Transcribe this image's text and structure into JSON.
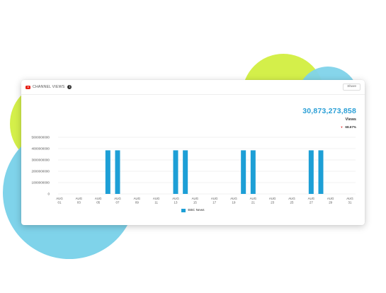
{
  "widget": {
    "title": "CHANNEL VIEWS",
    "info_symbol": "i",
    "share_label": "Share",
    "total_views": "30,873,273,858",
    "views_label": "Views",
    "change_symbol": "▼",
    "change_value": "68.67%"
  },
  "colors": {
    "accent": "#2a9fd6",
    "bar": "#1d9fd6",
    "negative": "#e03030",
    "youtube": "#e62117"
  },
  "chart_data": {
    "type": "bar",
    "y_ticks": [
      "5000000000",
      "4000000000",
      "3000000000",
      "2000000000",
      "1000000000",
      "0"
    ],
    "ylim": [
      0,
      5000000000
    ],
    "x_ticks": [
      [
        "AUG",
        "01"
      ],
      [
        "AUG",
        "03"
      ],
      [
        "AUG",
        "05"
      ],
      [
        "AUG",
        "07"
      ],
      [
        "AUG",
        "09"
      ],
      [
        "AUG",
        "11"
      ],
      [
        "AUG",
        "13"
      ],
      [
        "AUG",
        "15"
      ],
      [
        "AUG",
        "17"
      ],
      [
        "AUG",
        "19"
      ],
      [
        "AUG",
        "21"
      ],
      [
        "AUG",
        "23"
      ],
      [
        "AUG",
        "25"
      ],
      [
        "AUG",
        "27"
      ],
      [
        "AUG",
        "29"
      ],
      [
        "AUG",
        "31"
      ]
    ],
    "x_start_day": 1,
    "x_end_day": 31,
    "series": [
      {
        "name": "BBC News",
        "points": [
          {
            "day": 6,
            "value": 3850000000
          },
          {
            "day": 7,
            "value": 3850000000
          },
          {
            "day": 13,
            "value": 3850000000
          },
          {
            "day": 14,
            "value": 3850000000
          },
          {
            "day": 20,
            "value": 3850000000
          },
          {
            "day": 21,
            "value": 3850000000
          },
          {
            "day": 27,
            "value": 3850000000
          },
          {
            "day": 28,
            "value": 3850000000
          }
        ]
      }
    ],
    "grid": true,
    "legend": "bottom-center"
  }
}
